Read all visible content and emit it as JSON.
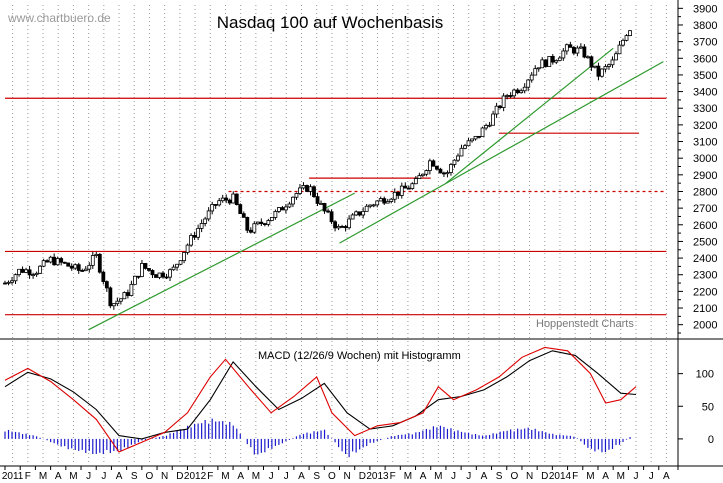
{
  "chart_data": {
    "type": "candlestick",
    "title": "Nasdaq 100 auf Wochenbasis",
    "watermark": "www.chartbuero.de",
    "credit": "Hoppenstedt Charts",
    "frequency": "weekly",
    "period_start": "2011-01",
    "period_end": "2014-06",
    "price_axis": {
      "ylim": [
        1920,
        3920
      ],
      "ticks": [
        "3900",
        "3800",
        "3700",
        "3600",
        "3500",
        "3400",
        "3300",
        "3200",
        "3100",
        "3000",
        "2900",
        "2800",
        "2700",
        "2600",
        "2500",
        "2400",
        "2300",
        "2200",
        "2100",
        "2000"
      ]
    },
    "time_axis": {
      "labels": [
        "2011",
        "F",
        "M",
        "A",
        "M",
        "J",
        "J",
        "A",
        "S",
        "O",
        "N",
        "D",
        "2012",
        "F",
        "M",
        "A",
        "M",
        "J",
        "J",
        "A",
        "S",
        "O",
        "N",
        "D",
        "2013",
        "F",
        "M",
        "A",
        "M",
        "J",
        "J",
        "A",
        "S",
        "O",
        "N",
        "D",
        "2014",
        "F",
        "M",
        "A",
        "M",
        "J",
        "J",
        "A"
      ],
      "month_count": 44
    },
    "price_path": [
      {
        "m": 0,
        "v": 2250
      },
      {
        "m": 1,
        "v": 2330
      },
      {
        "m": 2,
        "v": 2320
      },
      {
        "m": 3,
        "v": 2390
      },
      {
        "m": 4,
        "v": 2360
      },
      {
        "m": 5,
        "v": 2320
      },
      {
        "m": 6,
        "v": 2410
      },
      {
        "m": 7,
        "v": 2120
      },
      {
        "m": 8,
        "v": 2180
      },
      {
        "m": 9,
        "v": 2350
      },
      {
        "m": 10,
        "v": 2300
      },
      {
        "m": 11,
        "v": 2320
      },
      {
        "m": 12,
        "v": 2480
      },
      {
        "m": 13,
        "v": 2620
      },
      {
        "m": 14,
        "v": 2740
      },
      {
        "m": 15,
        "v": 2760
      },
      {
        "m": 16,
        "v": 2560
      },
      {
        "m": 17,
        "v": 2620
      },
      {
        "m": 18,
        "v": 2680
      },
      {
        "m": 19,
        "v": 2780
      },
      {
        "m": 20,
        "v": 2830
      },
      {
        "m": 21,
        "v": 2680
      },
      {
        "m": 22,
        "v": 2570
      },
      {
        "m": 23,
        "v": 2650
      },
      {
        "m": 24,
        "v": 2720
      },
      {
        "m": 25,
        "v": 2760
      },
      {
        "m": 26,
        "v": 2800
      },
      {
        "m": 27,
        "v": 2850
      },
      {
        "m": 28,
        "v": 2990
      },
      {
        "m": 29,
        "v": 2900
      },
      {
        "m": 30,
        "v": 3060
      },
      {
        "m": 31,
        "v": 3120
      },
      {
        "m": 32,
        "v": 3240
      },
      {
        "m": 33,
        "v": 3380
      },
      {
        "m": 34,
        "v": 3430
      },
      {
        "m": 35,
        "v": 3560
      },
      {
        "m": 36,
        "v": 3590
      },
      {
        "m": 37,
        "v": 3660
      },
      {
        "m": 38,
        "v": 3640
      },
      {
        "m": 39,
        "v": 3500
      },
      {
        "m": 40,
        "v": 3580
      },
      {
        "m": 41,
        "v": 3780
      }
    ],
    "horizontal_lines": [
      {
        "value": 3360,
        "style": "solid",
        "color": "#cc0000",
        "from_month": 0,
        "to_month": 43.5
      },
      {
        "value": 3150,
        "style": "solid",
        "color": "#cc0000",
        "from_month": 32.5,
        "to_month": 41.7
      },
      {
        "value": 2880,
        "style": "solid",
        "color": "#cc0000",
        "from_month": 20.0,
        "to_month": 28.0
      },
      {
        "value": 2800,
        "style": "dashed",
        "color": "#cc0000",
        "from_month": 14.7,
        "to_month": 43.5
      },
      {
        "value": 2440,
        "style": "solid",
        "color": "#cc0000",
        "from_month": 0,
        "to_month": 43.5
      },
      {
        "value": 2060,
        "style": "solid",
        "color": "#cc0000",
        "from_month": 0,
        "to_month": 43.5
      }
    ],
    "trend_lines": [
      {
        "color": "#2e9a2e",
        "from": {
          "m": 5.5,
          "v": 1970
        },
        "to": {
          "m": 23.0,
          "v": 2790
        }
      },
      {
        "color": "#2e9a2e",
        "from": {
          "m": 22.0,
          "v": 2490
        },
        "to": {
          "m": 43.3,
          "v": 3580
        }
      },
      {
        "color": "#2e9a2e",
        "from": {
          "m": 29.0,
          "v": 2850
        },
        "to": {
          "m": 40.0,
          "v": 3660
        }
      }
    ],
    "macd": {
      "label": "MACD (12/26/9 Wochen) mit Histogramm",
      "ylim": [
        -40,
        150
      ],
      "ticks": [
        "100",
        "50",
        "0"
      ],
      "macd_color": "#dd0000",
      "signal_color": "#000000",
      "histogram_color": "#1a1acc",
      "macd_path": [
        {
          "m": 0,
          "v": 90
        },
        {
          "m": 1.5,
          "v": 108
        },
        {
          "m": 3,
          "v": 88
        },
        {
          "m": 4.5,
          "v": 60
        },
        {
          "m": 6,
          "v": 30
        },
        {
          "m": 7.5,
          "v": -20
        },
        {
          "m": 9,
          "v": -5
        },
        {
          "m": 10.5,
          "v": 10
        },
        {
          "m": 12,
          "v": 40
        },
        {
          "m": 13.5,
          "v": 95
        },
        {
          "m": 14.5,
          "v": 122
        },
        {
          "m": 16,
          "v": 80
        },
        {
          "m": 17.5,
          "v": 40
        },
        {
          "m": 19,
          "v": 65
        },
        {
          "m": 20.5,
          "v": 95
        },
        {
          "m": 21.5,
          "v": 40
        },
        {
          "m": 23,
          "v": 5
        },
        {
          "m": 24.5,
          "v": 20
        },
        {
          "m": 26,
          "v": 25
        },
        {
          "m": 27.5,
          "v": 40
        },
        {
          "m": 28.5,
          "v": 80
        },
        {
          "m": 29.5,
          "v": 60
        },
        {
          "m": 31,
          "v": 75
        },
        {
          "m": 32.5,
          "v": 95
        },
        {
          "m": 34,
          "v": 125
        },
        {
          "m": 35.5,
          "v": 140
        },
        {
          "m": 37,
          "v": 135
        },
        {
          "m": 38.5,
          "v": 100
        },
        {
          "m": 39.5,
          "v": 55
        },
        {
          "m": 40.5,
          "v": 60
        },
        {
          "m": 41.5,
          "v": 80
        }
      ],
      "signal_path": [
        {
          "m": 0,
          "v": 80
        },
        {
          "m": 1.5,
          "v": 102
        },
        {
          "m": 3,
          "v": 92
        },
        {
          "m": 4.5,
          "v": 72
        },
        {
          "m": 6,
          "v": 45
        },
        {
          "m": 7.5,
          "v": 5
        },
        {
          "m": 9,
          "v": 0
        },
        {
          "m": 10.5,
          "v": 10
        },
        {
          "m": 12,
          "v": 15
        },
        {
          "m": 13.5,
          "v": 60
        },
        {
          "m": 15,
          "v": 118
        },
        {
          "m": 16.5,
          "v": 80
        },
        {
          "m": 18,
          "v": 45
        },
        {
          "m": 19.5,
          "v": 62
        },
        {
          "m": 21,
          "v": 85
        },
        {
          "m": 22.5,
          "v": 40
        },
        {
          "m": 24,
          "v": 15
        },
        {
          "m": 25.5,
          "v": 20
        },
        {
          "m": 27,
          "v": 35
        },
        {
          "m": 28.5,
          "v": 60
        },
        {
          "m": 30,
          "v": 65
        },
        {
          "m": 31.5,
          "v": 75
        },
        {
          "m": 33,
          "v": 95
        },
        {
          "m": 34.5,
          "v": 120
        },
        {
          "m": 36,
          "v": 135
        },
        {
          "m": 37.5,
          "v": 128
        },
        {
          "m": 39,
          "v": 100
        },
        {
          "m": 40.5,
          "v": 70
        },
        {
          "m": 41.5,
          "v": 68
        }
      ],
      "histogram_envelope": [
        {
          "m": 0,
          "v": 15
        },
        {
          "m": 2,
          "v": 5
        },
        {
          "m": 4,
          "v": -15
        },
        {
          "m": 6,
          "v": -25
        },
        {
          "m": 7.5,
          "v": -20
        },
        {
          "m": 9,
          "v": -3
        },
        {
          "m": 10.5,
          "v": 5
        },
        {
          "m": 12,
          "v": 20
        },
        {
          "m": 13.5,
          "v": 32
        },
        {
          "m": 15,
          "v": 25
        },
        {
          "m": 16.5,
          "v": -28
        },
        {
          "m": 18,
          "v": -10
        },
        {
          "m": 19.5,
          "v": 8
        },
        {
          "m": 21,
          "v": 15
        },
        {
          "m": 22.5,
          "v": -30
        },
        {
          "m": 24,
          "v": -8
        },
        {
          "m": 25.5,
          "v": 5
        },
        {
          "m": 27,
          "v": 10
        },
        {
          "m": 28.5,
          "v": 22
        },
        {
          "m": 30,
          "v": 12
        },
        {
          "m": 31.5,
          "v": 5
        },
        {
          "m": 33,
          "v": 14
        },
        {
          "m": 34.5,
          "v": 18
        },
        {
          "m": 36,
          "v": 8
        },
        {
          "m": 37.5,
          "v": 4
        },
        {
          "m": 38.5,
          "v": -18
        },
        {
          "m": 39.5,
          "v": -22
        },
        {
          "m": 40.5,
          "v": -8
        },
        {
          "m": 41.5,
          "v": 10
        }
      ]
    }
  }
}
